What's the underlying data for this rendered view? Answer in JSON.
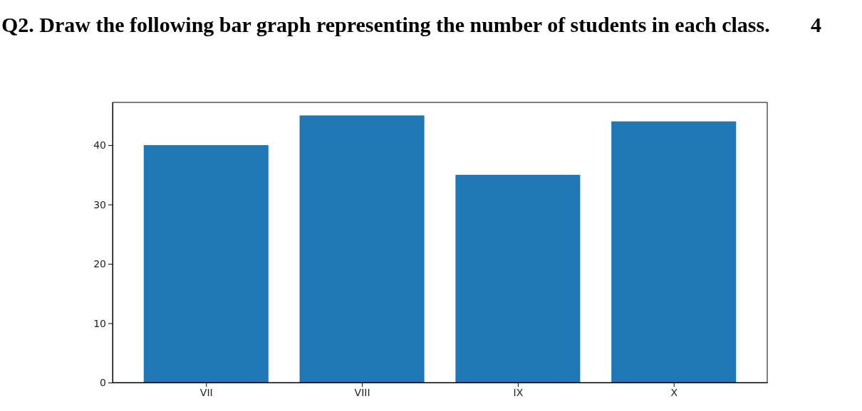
{
  "chart_data": {
    "type": "bar",
    "title": "Q2. Draw the following bar graph representing the number of students in each class.",
    "annotations": [
      "4"
    ],
    "categories": [
      "VII",
      "VIII",
      "IX",
      "X"
    ],
    "values": [
      40,
      45,
      35,
      44
    ],
    "color": "#1f77b4",
    "ylim": [
      0,
      47.2
    ],
    "yticks": [
      0,
      10,
      20,
      30,
      40
    ],
    "grid": false
  }
}
